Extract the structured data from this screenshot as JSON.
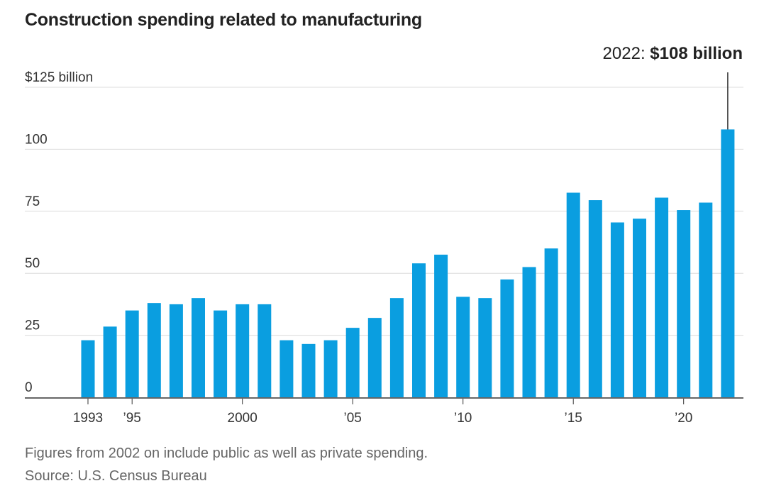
{
  "chart_data": {
    "type": "bar",
    "title": "Construction spending related to manufacturing",
    "y_unit_label": "$125 billion",
    "y_ticks": [
      {
        "value": 0,
        "label": "0"
      },
      {
        "value": 25,
        "label": "25"
      },
      {
        "value": 50,
        "label": "50"
      },
      {
        "value": 75,
        "label": "75"
      },
      {
        "value": 100,
        "label": "100"
      },
      {
        "value": 125,
        "label": "$125 billion"
      }
    ],
    "ylim": [
      0,
      125
    ],
    "categories": [
      1993,
      1994,
      1995,
      1996,
      1997,
      1998,
      1999,
      2000,
      2001,
      2002,
      2003,
      2004,
      2005,
      2006,
      2007,
      2008,
      2009,
      2010,
      2011,
      2012,
      2013,
      2014,
      2015,
      2016,
      2017,
      2018,
      2019,
      2020,
      2021,
      2022
    ],
    "values": [
      23,
      28.5,
      35,
      38,
      37.5,
      40,
      35,
      37.5,
      37.5,
      23,
      21.5,
      23,
      28,
      32,
      40,
      54,
      57.5,
      40.5,
      40,
      47.5,
      52.5,
      60,
      82.5,
      79.5,
      70.5,
      72,
      80.5,
      75.5,
      78.5,
      108
    ],
    "x_tick_labels": [
      {
        "category": 1993,
        "label": "1993"
      },
      {
        "category": 1995,
        "label": "’95"
      },
      {
        "category": 2000,
        "label": "2000"
      },
      {
        "category": 2005,
        "label": "’05"
      },
      {
        "category": 2010,
        "label": "’10"
      },
      {
        "category": 2015,
        "label": "’15"
      },
      {
        "category": 2020,
        "label": "’20"
      }
    ],
    "annotation": {
      "category": 2022,
      "prefix": "2022: ",
      "value_text": "$108 billion"
    },
    "bar_color": "#0a9ee0",
    "grid": true
  },
  "notes": {
    "line1": "Figures from 2002 on include public as well as private spending.",
    "line2": "Source: U.S. Census Bureau"
  }
}
